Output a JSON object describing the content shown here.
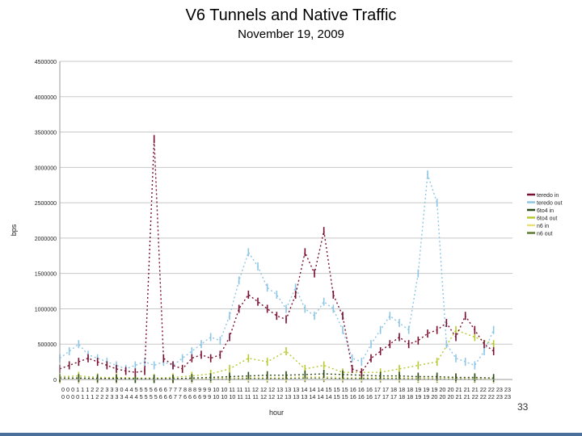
{
  "chart_data": {
    "type": "line",
    "title": "V6 Tunnels and Native Traffic",
    "subtitle": "November 19, 2009",
    "xlabel": "hour",
    "ylabel": "bps",
    "ylim": [
      0,
      4500000
    ],
    "yticks": [
      "0",
      "500000",
      "1000000",
      "1500000",
      "2000000",
      "2500000",
      "3000000",
      "3500000",
      "4000000",
      "4500000"
    ],
    "x_tick_row1": "0 0 0 1 1 1 2 2 2 3 3 3 0 4 4 5 5 5 5 6 6 6 7 7 7 8 8 8 9 9 9 10 10 11 11 11 12 12 12 13 13 13 14 14 14 15 15 15 16 16 16 17 17 18 18 18 19 19 19 20 20 21 21 21 22 22 23 23",
    "x_tick_row2": "0 0 0 0 1 1 1 2 2 2 3 3 3 4 4 4 5 5 5 5 6 6 6 7 7 6 6 6 6 9 9 10 10 10 11 11 11 12 12 12 13 13 13 14 14 14 15 15 16 16 16 17 17 17 18 18 19 19 20 20 20 21 21 22 22 22 23 23",
    "xlim": [
      0,
      24
    ],
    "grid": true,
    "legend_position": "right",
    "series": [
      {
        "name": "teredo in",
        "color": "#7a1030",
        "x": [
          0,
          0.5,
          1,
          1.5,
          2,
          2.5,
          3,
          3.5,
          4,
          4.5,
          5,
          5.5,
          6,
          6.5,
          7,
          7.5,
          8,
          8.5,
          9,
          9.5,
          10,
          10.5,
          11,
          11.5,
          12,
          12.5,
          13,
          13.5,
          14,
          14.5,
          15,
          15.5,
          16,
          16.5,
          17,
          17.5,
          18,
          18.5,
          19,
          19.5,
          20,
          20.5,
          21,
          21.5,
          22,
          22.5,
          23
        ],
        "y": [
          150000,
          200000,
          250000,
          300000,
          250000,
          200000,
          150000,
          120000,
          100000,
          120000,
          3400000,
          300000,
          200000,
          150000,
          300000,
          350000,
          300000,
          350000,
          600000,
          1000000,
          1200000,
          1100000,
          1000000,
          900000,
          850000,
          1200000,
          1800000,
          1500000,
          2100000,
          1200000,
          900000,
          150000,
          100000,
          300000,
          400000,
          500000,
          600000,
          500000,
          550000,
          650000,
          700000,
          800000,
          600000,
          900000,
          700000,
          500000,
          400000
        ]
      },
      {
        "name": "teredo out",
        "color": "#8ec6e6",
        "x": [
          0,
          0.5,
          1,
          1.5,
          2,
          2.5,
          3,
          3.5,
          4,
          4.5,
          5,
          5.5,
          6,
          6.5,
          7,
          7.5,
          8,
          8.5,
          9,
          9.5,
          10,
          10.5,
          11,
          11.5,
          12,
          12.5,
          13,
          13.5,
          14,
          14.5,
          15,
          15.5,
          16,
          16.5,
          17,
          17.5,
          18,
          18.5,
          19,
          19.5,
          20,
          20.5,
          21,
          21.5,
          22,
          22.5,
          23
        ],
        "y": [
          300000,
          400000,
          500000,
          350000,
          300000,
          250000,
          200000,
          150000,
          200000,
          250000,
          200000,
          250000,
          200000,
          300000,
          400000,
          500000,
          600000,
          550000,
          900000,
          1400000,
          1800000,
          1600000,
          1300000,
          1200000,
          1000000,
          1300000,
          1000000,
          900000,
          1100000,
          1000000,
          700000,
          300000,
          250000,
          500000,
          700000,
          900000,
          800000,
          700000,
          1500000,
          2900000,
          2500000,
          500000,
          300000,
          250000,
          200000,
          400000,
          700000
        ]
      },
      {
        "name": "6to4 in",
        "color": "#2d4a1a",
        "x": [
          0,
          1,
          2,
          3,
          4,
          5,
          6,
          7,
          8,
          9,
          10,
          11,
          12,
          13,
          14,
          15,
          16,
          17,
          18,
          19,
          20,
          21,
          22,
          23
        ],
        "y": [
          20000,
          20000,
          15000,
          15000,
          10000,
          10000,
          10000,
          20000,
          30000,
          40000,
          50000,
          60000,
          60000,
          70000,
          80000,
          70000,
          60000,
          50000,
          50000,
          40000,
          40000,
          30000,
          30000,
          20000
        ]
      },
      {
        "name": "6to4 out",
        "color": "#b7c92e",
        "x": [
          0,
          1,
          2,
          3,
          4,
          5,
          6,
          7,
          8,
          9,
          10,
          11,
          12,
          13,
          14,
          15,
          16,
          17,
          18,
          19,
          20,
          21,
          22,
          23
        ],
        "y": [
          40000,
          50000,
          30000,
          30000,
          20000,
          20000,
          30000,
          50000,
          80000,
          150000,
          300000,
          250000,
          400000,
          150000,
          200000,
          100000,
          100000,
          100000,
          150000,
          200000,
          250000,
          700000,
          600000,
          500000
        ]
      },
      {
        "name": "n6 in",
        "color": "#e8e07a",
        "x": [
          0,
          1,
          2,
          3,
          4,
          5,
          6,
          7,
          8,
          9,
          10,
          11,
          12,
          13,
          14,
          15,
          16,
          17,
          18,
          19,
          20,
          21,
          22,
          23
        ],
        "y": [
          10000,
          10000,
          10000,
          10000,
          10000,
          10000,
          10000,
          10000,
          20000,
          20000,
          30000,
          30000,
          30000,
          40000,
          40000,
          30000,
          30000,
          30000,
          30000,
          20000,
          20000,
          20000,
          20000,
          10000
        ]
      },
      {
        "name": "n6 out",
        "color": "#5a7a30",
        "x": [
          0,
          1,
          2,
          3,
          4,
          5,
          6,
          7,
          8,
          9,
          10,
          11,
          12,
          13,
          14,
          15,
          16,
          17,
          18,
          19,
          20,
          21,
          22,
          23
        ],
        "y": [
          5000,
          5000,
          5000,
          5000,
          5000,
          5000,
          5000,
          5000,
          10000,
          10000,
          15000,
          15000,
          15000,
          20000,
          20000,
          15000,
          15000,
          15000,
          15000,
          10000,
          10000,
          10000,
          10000,
          5000
        ]
      }
    ]
  },
  "page": {
    "number": "33"
  }
}
